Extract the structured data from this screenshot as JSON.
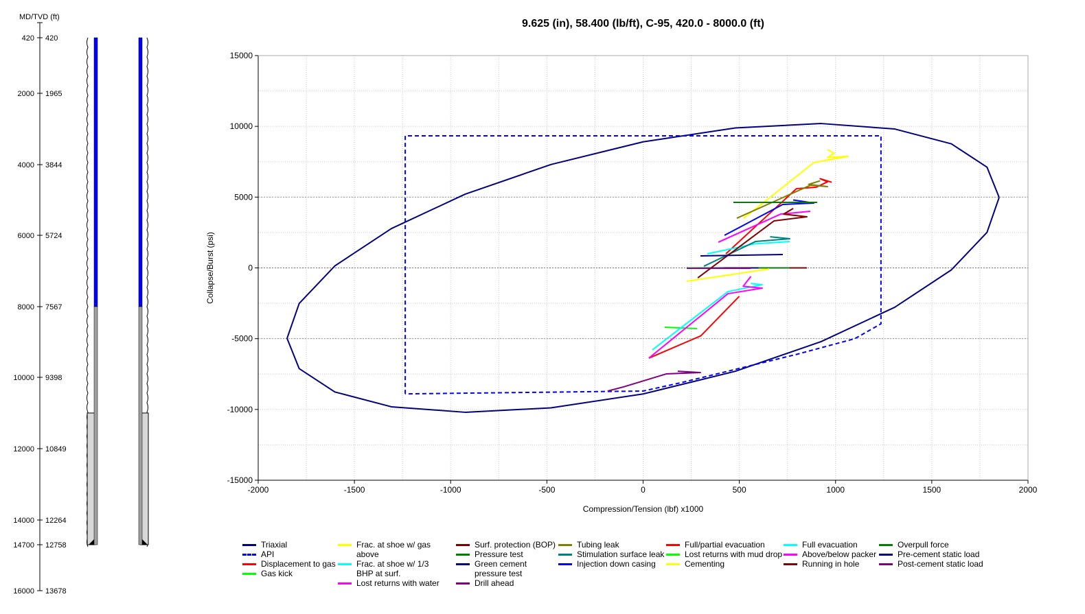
{
  "well": {
    "axis_title": "MD/TVD (ft)",
    "depths": [
      {
        "md": "420",
        "tvd": "420",
        "v": 420
      },
      {
        "md": "2000",
        "tvd": "1965",
        "v": 2000
      },
      {
        "md": "4000",
        "tvd": "3844",
        "v": 4000
      },
      {
        "md": "6000",
        "tvd": "5724",
        "v": 6000
      },
      {
        "md": "8000",
        "tvd": "7567",
        "v": 8000
      },
      {
        "md": "10000",
        "tvd": "9398",
        "v": 10000
      },
      {
        "md": "12000",
        "tvd": "10849",
        "v": 12000
      },
      {
        "md": "14000",
        "tvd": "12264",
        "v": 14000
      },
      {
        "md": "14700",
        "tvd": "12758",
        "v": 14700
      },
      {
        "md": "16000",
        "tvd": "13678",
        "v": 16000
      }
    ],
    "casing_top_md": 420,
    "selected_bottom_md": 8000,
    "cement_top_md": 11000,
    "shoe_md": 14700,
    "colors": {
      "selected": "#0000ff",
      "casing": "#a0a0a0"
    }
  },
  "chart_data": {
    "type": "line",
    "title": "9.625 (in), 58.400 (lb/ft), C-95, 420.0 - 8000.0 (ft)",
    "xlabel": "Compression/Tension (lbf) x1000",
    "ylabel": "Collapse/Burst (psi)",
    "xlim": [
      -2000,
      2000
    ],
    "ylim": [
      -15000,
      15000
    ],
    "xticks": [
      -2000,
      -1500,
      -1000,
      -500,
      0,
      500,
      1000,
      1500,
      2000
    ],
    "yticks": [
      15000,
      10000,
      5000,
      0,
      -5000,
      -10000,
      -15000
    ],
    "grid": true,
    "legend_position": "bottom",
    "series": [
      {
        "name": "Triaxial",
        "color": "#000080",
        "dash": false,
        "width": 2,
        "col": 0,
        "points": [
          [
            1850,
            4977
          ],
          [
            1787,
            7117
          ],
          [
            1602,
            8763
          ],
          [
            1308,
            9812
          ],
          [
            925,
            10199
          ],
          [
            479,
            9887
          ],
          [
            0,
            8905
          ],
          [
            -479,
            7303
          ],
          [
            -925,
            5207
          ],
          [
            -1308,
            2778
          ],
          [
            -1602,
            139
          ],
          [
            -1787,
            -2510
          ],
          [
            -1850,
            -4977
          ],
          [
            -1787,
            -7117
          ],
          [
            -1602,
            -8763
          ],
          [
            -1308,
            -9812
          ],
          [
            -925,
            -10199
          ],
          [
            -479,
            -9887
          ],
          [
            0,
            -8905
          ],
          [
            479,
            -7303
          ],
          [
            925,
            -5207
          ],
          [
            1308,
            -2778
          ],
          [
            1602,
            -139
          ],
          [
            1787,
            2510
          ],
          [
            1850,
            4977
          ]
        ]
      },
      {
        "name": "API",
        "color": "#0000ff",
        "dash": true,
        "width": 2,
        "col": 0,
        "points": [
          [
            -1236,
            -8900
          ],
          [
            -1236,
            9330
          ],
          [
            1236,
            9330
          ],
          [
            1236,
            -3950
          ],
          [
            1100,
            -5000
          ],
          [
            800,
            -6100
          ],
          [
            500,
            -7100
          ],
          [
            200,
            -8100
          ],
          [
            0,
            -8700
          ],
          [
            -1236,
            -8900
          ]
        ]
      },
      {
        "name": "Displacement to gas",
        "color": "#ff0000",
        "col": 0,
        "points": [
          [
            430,
            992
          ],
          [
            797,
            5596
          ],
          [
            900,
            5700
          ],
          [
            958,
            6080
          ],
          [
            920,
            6300
          ],
          [
            980,
            6050
          ]
        ]
      },
      {
        "name": "Gas kick",
        "color": "#00ff00",
        "col": 0,
        "points": [
          [
            112,
            -4195
          ],
          [
            280,
            -4292
          ]
        ]
      },
      {
        "name": "Frac. at shoe w/ gas above",
        "color": "#ffff00",
        "col": 1,
        "points": [
          [
            523,
            3512
          ],
          [
            887,
            7438
          ],
          [
            1065,
            7875
          ],
          [
            958,
            7800
          ],
          [
            993,
            8100
          ],
          [
            958,
            8360
          ]
        ]
      },
      {
        "name": "Frac. at shoe w/ 1/3 BHP at surf.",
        "color": "#00ffff",
        "col": 1,
        "points": [
          [
            334,
            992
          ],
          [
            580,
            1700
          ],
          [
            762,
            1864
          ]
        ]
      },
      {
        "name": "Lost returns with water",
        "color": "#ff00ff",
        "col": 1,
        "points": [
          [
            391,
            1815
          ],
          [
            715,
            3803
          ],
          [
            869,
            3997
          ]
        ]
      },
      {
        "name": "Surf. protection (BOP)",
        "color": "#800000",
        "col": 2,
        "points": [
          [
            700,
            0
          ],
          [
            851,
            0
          ]
        ]
      },
      {
        "name": "Pressure test",
        "color": "#008000",
        "col": 2,
        "points": [
          [
            600,
            0
          ],
          [
            760,
            0
          ]
        ]
      },
      {
        "name": "Green cement pressure test",
        "color": "#000080",
        "col": 2,
        "points": [
          [
            227,
            0
          ],
          [
            600,
            0
          ]
        ]
      },
      {
        "name": "Drill ahead",
        "color": "#800080",
        "col": 2,
        "points": [
          [
            -184,
            -8700
          ],
          [
            -100,
            -8400
          ],
          [
            120,
            -7490
          ],
          [
            298,
            -7394
          ],
          [
            180,
            -7300
          ]
        ]
      },
      {
        "name": "Tubing leak",
        "color": "#808000",
        "col": 3,
        "points": [
          [
            487,
            3512
          ],
          [
            869,
            5838
          ],
          [
            958,
            5741
          ],
          [
            860,
            5900
          ],
          [
            920,
            6150
          ]
        ]
      },
      {
        "name": "Stimulation surface leak",
        "color": "#008080",
        "col": 3,
        "points": [
          [
            316,
            118
          ],
          [
            584,
            1864
          ],
          [
            762,
            2058
          ],
          [
            660,
            2200
          ]
        ]
      },
      {
        "name": "Injection down casing",
        "color": "#0000ff",
        "col": 3,
        "points": [
          [
            423,
            2300
          ],
          [
            726,
            4482
          ],
          [
            887,
            4579
          ],
          [
            780,
            4800
          ]
        ]
      },
      {
        "name": "Full/partial evacuation",
        "color": "#ff0000",
        "col": 4,
        "points": [
          [
            30,
            -6376
          ],
          [
            300,
            -4800
          ],
          [
            500,
            -2000
          ]
        ]
      },
      {
        "name": "Lost returns with mud drop",
        "color": "#00ff00",
        "col": 4,
        "points": [
          [
            230,
            0
          ],
          [
            420,
            -20
          ]
        ]
      },
      {
        "name": "Cementing",
        "color": "#ffff00",
        "col": 4,
        "points": [
          [
            227,
            -948
          ],
          [
            655,
            -75
          ]
        ]
      },
      {
        "name": "Full evacuation",
        "color": "#00ffff",
        "col": 5,
        "points": [
          [
            48,
            -5795
          ],
          [
            441,
            -1675
          ],
          [
            619,
            -1190
          ],
          [
            560,
            -1100
          ]
        ]
      },
      {
        "name": "Above/below packer",
        "color": "#ff00ff",
        "col": 5,
        "points": [
          [
            30,
            -6376
          ],
          [
            441,
            -1820
          ],
          [
            619,
            -1430
          ],
          [
            520,
            -1300
          ],
          [
            560,
            -600
          ]
        ]
      },
      {
        "name": "Running in hole",
        "color": "#800000",
        "col": 5,
        "points": [
          [
            284,
            -706
          ],
          [
            680,
            3318
          ],
          [
            851,
            3609
          ],
          [
            730,
            3800
          ],
          [
            780,
            4200
          ]
        ]
      },
      {
        "name": "Overpull force",
        "color": "#008000",
        "col": 6,
        "points": [
          [
            469,
            4627
          ],
          [
            905,
            4627
          ]
        ]
      },
      {
        "name": "Pre-cement static load",
        "color": "#000080",
        "col": 6,
        "points": [
          [
            298,
            846
          ],
          [
            726,
            943
          ]
        ]
      },
      {
        "name": "Post-cement static load",
        "color": "#800080",
        "col": 6,
        "points": [
          [
            227,
            -30
          ],
          [
            560,
            -30
          ]
        ]
      }
    ]
  }
}
